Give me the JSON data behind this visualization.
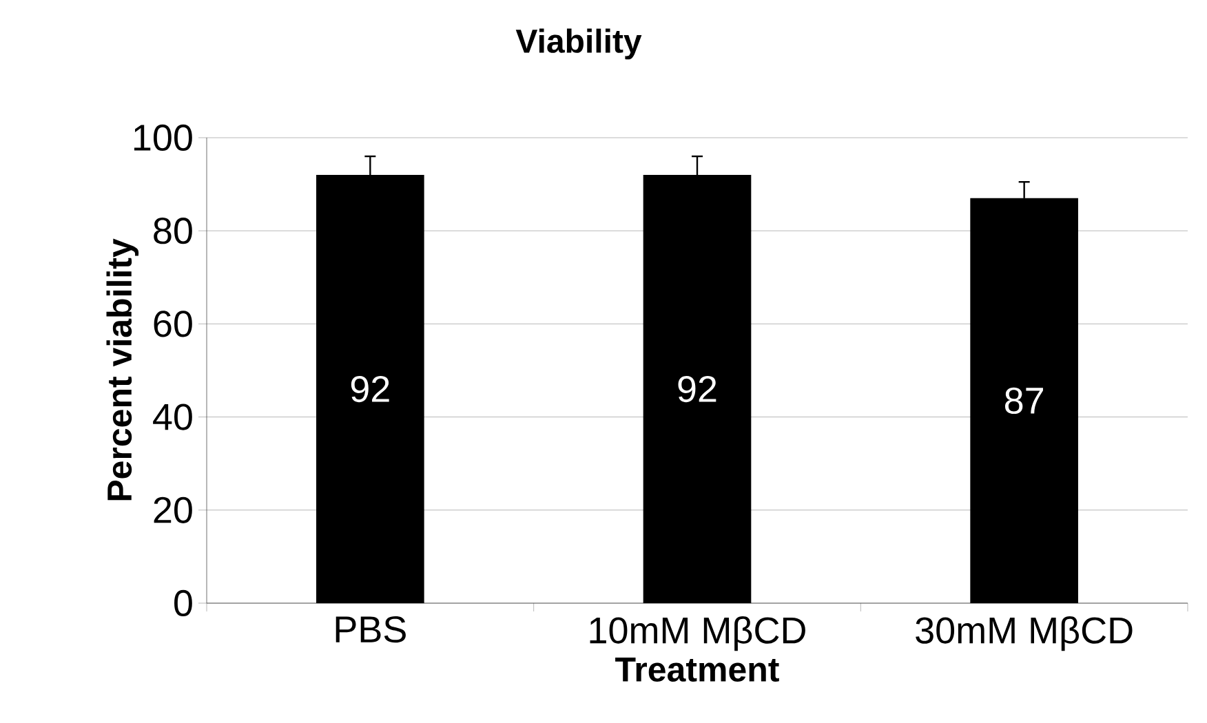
{
  "chart_data": {
    "type": "bar",
    "title": "Viability",
    "xlabel": "Treatment",
    "ylabel": "Percent viability",
    "categories": [
      "PBS",
      "10mM MβCD",
      "30mM MβCD"
    ],
    "values": [
      92,
      92,
      87
    ],
    "value_labels": [
      "92",
      "92",
      "87"
    ],
    "errors": [
      4,
      4,
      3.5
    ],
    "color": "#000000",
    "ylim": [
      0,
      100
    ],
    "yticks": [
      0,
      20,
      40,
      60,
      80,
      100
    ],
    "grid": "y"
  }
}
